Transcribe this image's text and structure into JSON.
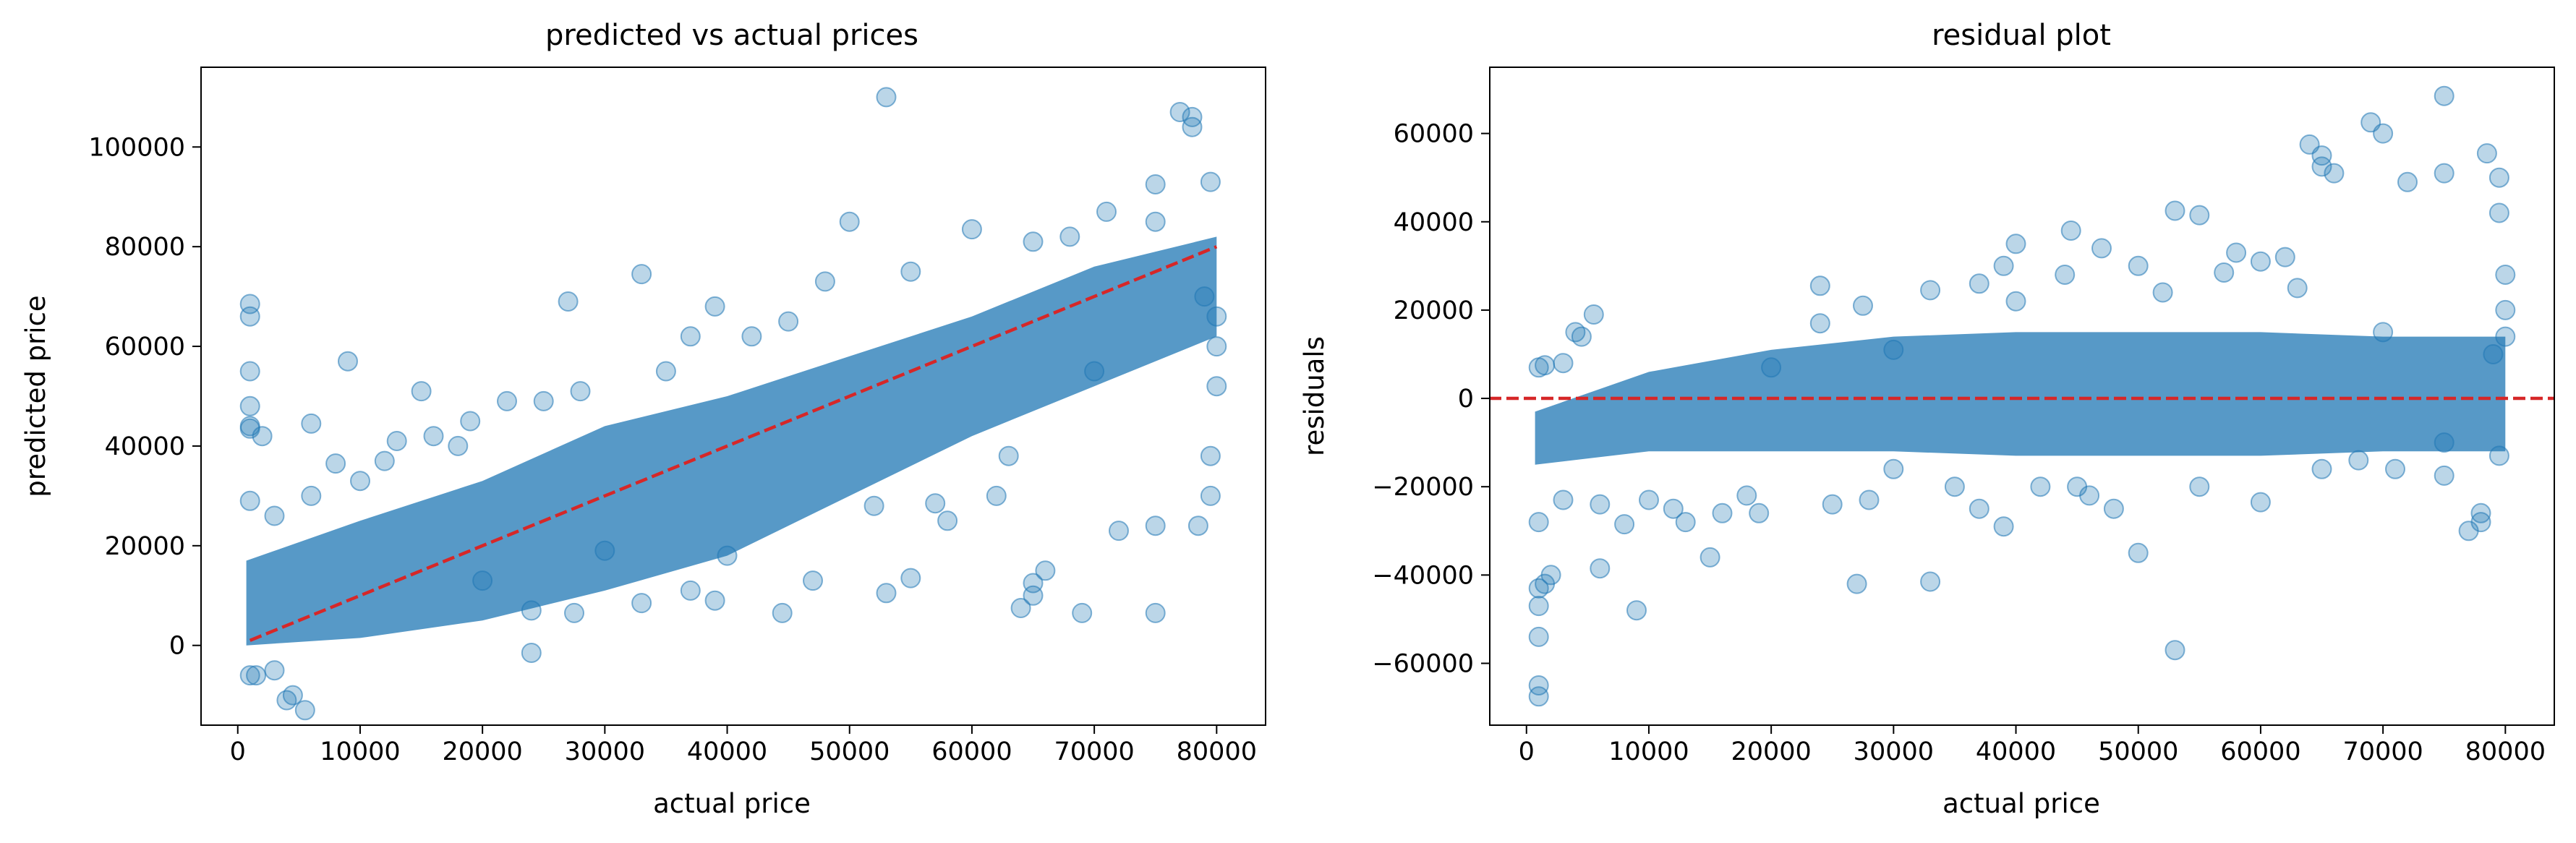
{
  "colors": {
    "points": "#1f77b4",
    "reference_line": "#d62728",
    "axes": "#000000",
    "background": "#ffffff"
  },
  "chart_data": [
    {
      "type": "scatter",
      "title": "predicted vs actual prices",
      "xlabel": "actual price",
      "ylabel": "predicted price",
      "xlim": [
        -3000,
        84000
      ],
      "ylim": [
        -16000,
        116000
      ],
      "xticks": [
        0,
        10000,
        20000,
        30000,
        40000,
        50000,
        60000,
        70000,
        80000
      ],
      "xtick_labels": [
        "0",
        "10000",
        "20000",
        "30000",
        "40000",
        "50000",
        "60000",
        "70000",
        "80000"
      ],
      "yticks": [
        0,
        20000,
        40000,
        60000,
        80000,
        100000
      ],
      "ytick_labels": [
        "0",
        "20000",
        "40000",
        "60000",
        "80000",
        "100000"
      ],
      "grid": false,
      "series": [
        {
          "kind": "points",
          "color": "#1f77b4",
          "alpha": 0.3,
          "points": [
            [
              1000,
              68500
            ],
            [
              1000,
              66000
            ],
            [
              1000,
              55000
            ],
            [
              1000,
              48000
            ],
            [
              1000,
              44000
            ],
            [
              1000,
              43500
            ],
            [
              1000,
              29000
            ],
            [
              1000,
              -6000
            ],
            [
              1500,
              -6000
            ],
            [
              3000,
              -5000
            ],
            [
              4000,
              -11000
            ],
            [
              5500,
              -13000
            ],
            [
              4500,
              -10000
            ],
            [
              9000,
              57000
            ],
            [
              2000,
              42000
            ],
            [
              6000,
              44500
            ],
            [
              8000,
              36500
            ],
            [
              15000,
              51000
            ],
            [
              19000,
              45000
            ],
            [
              22000,
              49000
            ],
            [
              27000,
              69000
            ],
            [
              33000,
              74500
            ],
            [
              24000,
              -1500
            ],
            [
              27500,
              6500
            ],
            [
              33000,
              8500
            ],
            [
              39000,
              9000
            ],
            [
              44500,
              6500
            ],
            [
              53000,
              110000
            ],
            [
              50000,
              85000
            ],
            [
              60000,
              83500
            ],
            [
              65000,
              81000
            ],
            [
              53000,
              10500
            ],
            [
              55000,
              13500
            ],
            [
              57000,
              28500
            ],
            [
              62000,
              30000
            ],
            [
              64000,
              7500
            ],
            [
              65000,
              12500
            ],
            [
              65000,
              10000
            ],
            [
              69000,
              6500
            ],
            [
              75000,
              6500
            ],
            [
              75000,
              24000
            ],
            [
              72000,
              23000
            ],
            [
              77000,
              107000
            ],
            [
              78000,
              106000
            ],
            [
              78000,
              104000
            ],
            [
              75000,
              92500
            ],
            [
              79500,
              93000
            ],
            [
              79500,
              30000
            ],
            [
              79500,
              38000
            ],
            [
              78500,
              24000
            ],
            [
              68000,
              82000
            ],
            [
              71000,
              87000
            ],
            [
              45000,
              65000
            ],
            [
              42000,
              62000
            ],
            [
              39000,
              68000
            ],
            [
              37000,
              62000
            ],
            [
              47000,
              13000
            ],
            [
              37000,
              11000
            ],
            [
              40000,
              18000
            ],
            [
              13000,
              41000
            ],
            [
              16000,
              42000
            ],
            [
              25000,
              49000
            ],
            [
              28000,
              51000
            ],
            [
              20000,
              13000
            ],
            [
              30000,
              19000
            ],
            [
              52000,
              28000
            ],
            [
              58000,
              25000
            ],
            [
              63000,
              38000
            ],
            [
              66000,
              15000
            ],
            [
              70000,
              55000
            ],
            [
              75000,
              85000
            ],
            [
              79000,
              70000
            ],
            [
              80000,
              66000
            ],
            [
              80000,
              60000
            ],
            [
              80000,
              52000
            ],
            [
              35000,
              55000
            ],
            [
              48000,
              73000
            ],
            [
              55000,
              75000
            ],
            [
              6000,
              30000
            ],
            [
              10000,
              33000
            ],
            [
              12000,
              37000
            ],
            [
              3000,
              26000
            ],
            [
              18000,
              40000
            ],
            [
              24000,
              7000
            ]
          ]
        },
        {
          "kind": "line",
          "color": "#d62728",
          "dashed": true,
          "points": [
            [
              1000,
              1000
            ],
            [
              80000,
              80000
            ]
          ]
        }
      ]
    },
    {
      "type": "scatter",
      "title": "residual plot",
      "xlabel": "actual price",
      "ylabel": "residuals",
      "xlim": [
        -3000,
        84000
      ],
      "ylim": [
        -74000,
        75000
      ],
      "xticks": [
        0,
        10000,
        20000,
        30000,
        40000,
        50000,
        60000,
        70000,
        80000
      ],
      "xtick_labels": [
        "0",
        "10000",
        "20000",
        "30000",
        "40000",
        "50000",
        "60000",
        "70000",
        "80000"
      ],
      "yticks": [
        -60000,
        -40000,
        -20000,
        0,
        20000,
        40000,
        60000
      ],
      "ytick_labels": [
        "−60000",
        "−40000",
        "−20000",
        "0",
        "20000",
        "40000",
        "60000"
      ],
      "grid": false,
      "series": [
        {
          "kind": "points",
          "color": "#1f77b4",
          "alpha": 0.3,
          "points": [
            [
              1000,
              -67500
            ],
            [
              1000,
              -65000
            ],
            [
              1000,
              -54000
            ],
            [
              1000,
              -47000
            ],
            [
              1000,
              -43000
            ],
            [
              1500,
              -42000
            ],
            [
              1000,
              -28000
            ],
            [
              1000,
              7000
            ],
            [
              1500,
              7500
            ],
            [
              3000,
              8000
            ],
            [
              4000,
              15000
            ],
            [
              5500,
              19000
            ],
            [
              4500,
              14000
            ],
            [
              9000,
              -48000
            ],
            [
              2000,
              -40000
            ],
            [
              6000,
              -38500
            ],
            [
              8000,
              -28500
            ],
            [
              15000,
              -36000
            ],
            [
              19000,
              -26000
            ],
            [
              27000,
              -42000
            ],
            [
              33000,
              -41500
            ],
            [
              24000,
              25500
            ],
            [
              27500,
              21000
            ],
            [
              33000,
              24500
            ],
            [
              39000,
              30000
            ],
            [
              44500,
              38000
            ],
            [
              53000,
              -57000
            ],
            [
              50000,
              -35000
            ],
            [
              60000,
              -23500
            ],
            [
              65000,
              -16000
            ],
            [
              53000,
              42500
            ],
            [
              55000,
              41500
            ],
            [
              57000,
              28500
            ],
            [
              62000,
              32000
            ],
            [
              64000,
              57500
            ],
            [
              65000,
              52500
            ],
            [
              65000,
              55000
            ],
            [
              69000,
              62500
            ],
            [
              75000,
              68500
            ],
            [
              75000,
              51000
            ],
            [
              72000,
              49000
            ],
            [
              77000,
              -30000
            ],
            [
              78000,
              -28000
            ],
            [
              78000,
              -26000
            ],
            [
              75000,
              -17500
            ],
            [
              79500,
              -13000
            ],
            [
              79500,
              50000
            ],
            [
              79500,
              42000
            ],
            [
              78500,
              55500
            ],
            [
              68000,
              -14000
            ],
            [
              71000,
              -16000
            ],
            [
              45000,
              -20000
            ],
            [
              42000,
              -20000
            ],
            [
              39000,
              -29000
            ],
            [
              37000,
              -25000
            ],
            [
              47000,
              34000
            ],
            [
              37000,
              26000
            ],
            [
              40000,
              22000
            ],
            [
              13000,
              -28000
            ],
            [
              16000,
              -26000
            ],
            [
              25000,
              -24000
            ],
            [
              28000,
              -23000
            ],
            [
              20000,
              7000
            ],
            [
              30000,
              11000
            ],
            [
              52000,
              24000
            ],
            [
              58000,
              33000
            ],
            [
              63000,
              25000
            ],
            [
              66000,
              51000
            ],
            [
              70000,
              15000
            ],
            [
              75000,
              -10000
            ],
            [
              79000,
              10000
            ],
            [
              80000,
              14000
            ],
            [
              80000,
              20000
            ],
            [
              80000,
              28000
            ],
            [
              35000,
              -20000
            ],
            [
              48000,
              -25000
            ],
            [
              55000,
              -20000
            ],
            [
              6000,
              -24000
            ],
            [
              10000,
              -23000
            ],
            [
              12000,
              -25000
            ],
            [
              3000,
              -23000
            ],
            [
              18000,
              -22000
            ],
            [
              24000,
              17000
            ],
            [
              70000,
              60000
            ],
            [
              60000,
              31000
            ],
            [
              40000,
              35000
            ],
            [
              44000,
              28000
            ],
            [
              50000,
              30000
            ],
            [
              46000,
              -22000
            ],
            [
              30000,
              -16000
            ]
          ]
        },
        {
          "kind": "hline",
          "color": "#d62728",
          "dashed": true,
          "y": 0
        }
      ]
    }
  ]
}
